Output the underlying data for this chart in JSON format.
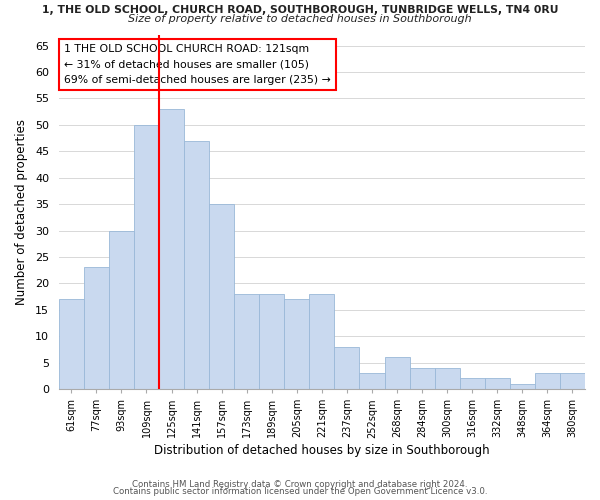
{
  "title_line1": "1, THE OLD SCHOOL, CHURCH ROAD, SOUTHBOROUGH, TUNBRIDGE WELLS, TN4 0RU",
  "title_line2": "Size of property relative to detached houses in Southborough",
  "xlabel": "Distribution of detached houses by size in Southborough",
  "ylabel": "Number of detached properties",
  "bin_labels": [
    "61sqm",
    "77sqm",
    "93sqm",
    "109sqm",
    "125sqm",
    "141sqm",
    "157sqm",
    "173sqm",
    "189sqm",
    "205sqm",
    "221sqm",
    "237sqm",
    "252sqm",
    "268sqm",
    "284sqm",
    "300sqm",
    "316sqm",
    "332sqm",
    "348sqm",
    "364sqm",
    "380sqm"
  ],
  "bar_heights": [
    17,
    23,
    30,
    50,
    53,
    47,
    35,
    18,
    18,
    17,
    18,
    8,
    3,
    6,
    4,
    4,
    2,
    2,
    1,
    3,
    3
  ],
  "bar_color": "#c9d9ef",
  "bar_edge_color": "#9ab8d8",
  "red_line_index": 4,
  "ylim": [
    0,
    67
  ],
  "yticks": [
    0,
    5,
    10,
    15,
    20,
    25,
    30,
    35,
    40,
    45,
    50,
    55,
    60,
    65
  ],
  "annotation_text": "1 THE OLD SCHOOL CHURCH ROAD: 121sqm\n← 31% of detached houses are smaller (105)\n69% of semi-detached houses are larger (235) →",
  "footer_line1": "Contains HM Land Registry data © Crown copyright and database right 2024.",
  "footer_line2": "Contains public sector information licensed under the Open Government Licence v3.0.",
  "background_color": "#ffffff",
  "grid_color": "#d8d8d8"
}
